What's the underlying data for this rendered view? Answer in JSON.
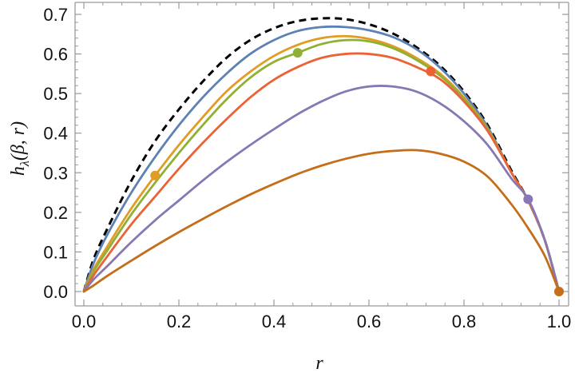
{
  "chart_data": {
    "type": "line",
    "xlabel": "r",
    "ylabel": "hλ(β, r)",
    "ylabel_parts": {
      "main": "h",
      "sub": "λ",
      "args": "(β, r)"
    },
    "xlim": [
      0.0,
      1.0
    ],
    "ylim": [
      0.0,
      0.7
    ],
    "x_ticks": [
      "0.0",
      "0.2",
      "0.4",
      "0.6",
      "0.8",
      "1.0"
    ],
    "y_ticks": [
      "0.0",
      "0.1",
      "0.2",
      "0.3",
      "0.4",
      "0.5",
      "0.6",
      "0.7"
    ],
    "grid": false,
    "series": [
      {
        "color": "#000000",
        "dashed": true,
        "x": [
          0,
          0.02,
          0.05,
          0.1,
          0.15,
          0.2,
          0.25,
          0.3,
          0.35,
          0.4,
          0.45,
          0.5,
          0.55,
          0.6,
          0.65,
          0.7,
          0.75,
          0.8,
          0.85,
          0.9,
          0.935,
          0.97,
          1.0
        ],
        "y": [
          0,
          0.08,
          0.16,
          0.28,
          0.38,
          0.46,
          0.53,
          0.59,
          0.635,
          0.665,
          0.683,
          0.69,
          0.688,
          0.675,
          0.652,
          0.617,
          0.57,
          0.505,
          0.42,
          0.305,
          0.23,
          0.13,
          0
        ]
      },
      {
        "color": "#5E81B5",
        "dashed": false,
        "x": [
          0,
          0.02,
          0.05,
          0.1,
          0.15,
          0.2,
          0.25,
          0.3,
          0.35,
          0.4,
          0.45,
          0.5,
          0.55,
          0.6,
          0.65,
          0.7,
          0.75,
          0.8,
          0.85,
          0.9,
          0.935,
          0.97,
          1.0
        ],
        "y": [
          0,
          0.07,
          0.145,
          0.25,
          0.34,
          0.42,
          0.49,
          0.55,
          0.6,
          0.635,
          0.658,
          0.668,
          0.668,
          0.66,
          0.643,
          0.612,
          0.565,
          0.5,
          0.415,
          0.3,
          0.23,
          0.13,
          0
        ]
      },
      {
        "color": "#E19C24",
        "dashed": false,
        "marker_x": 0.15,
        "marker_y": 0.293,
        "x": [
          0,
          0.02,
          0.05,
          0.1,
          0.15,
          0.2,
          0.25,
          0.3,
          0.35,
          0.4,
          0.45,
          0.5,
          0.55,
          0.6,
          0.65,
          0.7,
          0.75,
          0.8,
          0.85,
          0.9,
          0.935,
          0.97,
          1.0
        ],
        "y": [
          0,
          0.055,
          0.115,
          0.21,
          0.293,
          0.37,
          0.44,
          0.505,
          0.555,
          0.595,
          0.623,
          0.64,
          0.645,
          0.638,
          0.62,
          0.59,
          0.55,
          0.49,
          0.41,
          0.3,
          0.23,
          0.13,
          0
        ]
      },
      {
        "color": "#8FB032",
        "dashed": false,
        "marker_x": 0.45,
        "marker_y": 0.603,
        "x": [
          0,
          0.02,
          0.05,
          0.1,
          0.15,
          0.2,
          0.25,
          0.3,
          0.35,
          0.4,
          0.45,
          0.5,
          0.55,
          0.6,
          0.65,
          0.7,
          0.75,
          0.8,
          0.85,
          0.9,
          0.935,
          0.97,
          1.0
        ],
        "y": [
          0,
          0.05,
          0.105,
          0.195,
          0.275,
          0.35,
          0.42,
          0.485,
          0.54,
          0.58,
          0.603,
          0.625,
          0.635,
          0.632,
          0.615,
          0.585,
          0.545,
          0.487,
          0.408,
          0.3,
          0.23,
          0.13,
          0
        ]
      },
      {
        "color": "#EB6235",
        "dashed": false,
        "marker_x": 0.73,
        "marker_y": 0.556,
        "x": [
          0,
          0.02,
          0.05,
          0.1,
          0.15,
          0.2,
          0.25,
          0.3,
          0.35,
          0.4,
          0.45,
          0.5,
          0.55,
          0.6,
          0.65,
          0.7,
          0.75,
          0.8,
          0.85,
          0.9,
          0.935,
          0.97,
          1.0
        ],
        "y": [
          0,
          0.04,
          0.09,
          0.17,
          0.24,
          0.31,
          0.375,
          0.435,
          0.49,
          0.535,
          0.567,
          0.59,
          0.6,
          0.6,
          0.59,
          0.567,
          0.536,
          0.48,
          0.405,
          0.3,
          0.23,
          0.13,
          0
        ]
      },
      {
        "color": "#8778B3",
        "dashed": false,
        "marker_x": 0.935,
        "marker_y": 0.233,
        "x": [
          0,
          0.02,
          0.05,
          0.1,
          0.15,
          0.2,
          0.25,
          0.3,
          0.35,
          0.4,
          0.45,
          0.5,
          0.55,
          0.6,
          0.65,
          0.7,
          0.75,
          0.8,
          0.85,
          0.9,
          0.935,
          0.97,
          1.0
        ],
        "y": [
          0,
          0.03,
          0.065,
          0.125,
          0.18,
          0.23,
          0.28,
          0.327,
          0.37,
          0.41,
          0.448,
          0.48,
          0.505,
          0.518,
          0.518,
          0.505,
          0.475,
          0.43,
          0.37,
          0.285,
          0.233,
          0.13,
          0
        ]
      },
      {
        "color": "#C56E1A",
        "dashed": false,
        "marker_x": 1.0,
        "marker_y": 0.0,
        "x": [
          0,
          0.02,
          0.05,
          0.1,
          0.15,
          0.2,
          0.25,
          0.3,
          0.35,
          0.4,
          0.45,
          0.5,
          0.55,
          0.6,
          0.65,
          0.7,
          0.75,
          0.8,
          0.85,
          0.9,
          0.935,
          0.97,
          1.0
        ],
        "y": [
          0,
          0.015,
          0.04,
          0.078,
          0.115,
          0.15,
          0.183,
          0.215,
          0.245,
          0.272,
          0.297,
          0.318,
          0.335,
          0.348,
          0.355,
          0.357,
          0.348,
          0.328,
          0.29,
          0.22,
          0.16,
          0.09,
          0
        ]
      }
    ]
  }
}
